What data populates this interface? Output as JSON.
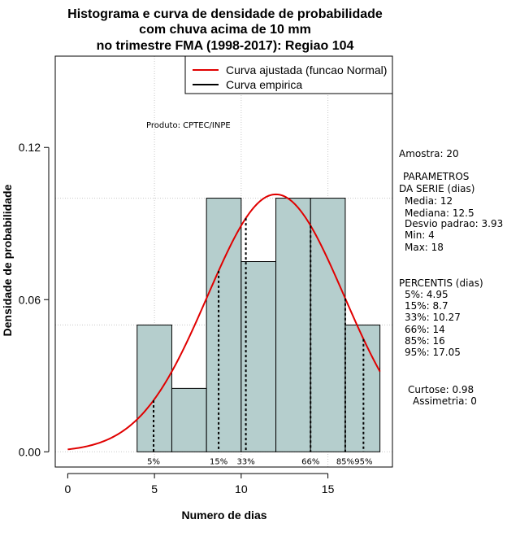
{
  "chart_data": {
    "type": "histogram",
    "title": [
      "Histograma e curva de densidade de probabilidade",
      "com chuva acima de 10 mm",
      "no trimestre FMA (1998-2017): Regiao 104"
    ],
    "xlabel": "Numero de dias",
    "ylabel": "Densidade de probabilidade",
    "xlim": [
      -0.72,
      18.72
    ],
    "ylim": [
      -0.006,
      0.156
    ],
    "x_ticks": [
      0,
      5,
      10,
      15
    ],
    "x_tick_labels": [
      "0",
      "5",
      "10",
      "15"
    ],
    "y_ticks": [
      0.0,
      0.06,
      0.12
    ],
    "y_tick_labels": [
      "0.00",
      "0.06",
      "0.12"
    ],
    "grid": true,
    "grid_y": [
      0.05,
      0.1
    ],
    "grid_x": [
      5,
      10,
      15
    ],
    "bars": [
      {
        "x0": 4,
        "x1": 6,
        "density": 0.05
      },
      {
        "x0": 6,
        "x1": 8,
        "density": 0.025
      },
      {
        "x0": 8,
        "x1": 10,
        "density": 0.1
      },
      {
        "x0": 10,
        "x1": 12,
        "density": 0.075
      },
      {
        "x0": 12,
        "x1": 14,
        "density": 0.1
      },
      {
        "x0": 14,
        "x1": 16,
        "density": 0.1
      },
      {
        "x0": 16,
        "x1": 18,
        "density": 0.05
      }
    ],
    "bar_color": "#b5cecd",
    "normal_curve": {
      "mean": 12,
      "sd": 3.93,
      "color": "#e00000",
      "x_range": [
        0,
        18
      ]
    },
    "percentile_lines": [
      {
        "label": "5%",
        "x": 4.95
      },
      {
        "label": "15%",
        "x": 8.7
      },
      {
        "label": "33%",
        "x": 10.27
      },
      {
        "label": "66%",
        "x": 14
      },
      {
        "label": "85%",
        "x": 16
      },
      {
        "label": "95%",
        "x": 17.05
      }
    ],
    "legend": {
      "position": "top-right",
      "entries": [
        {
          "label": "Curva ajustada (funcao Normal)",
          "color": "#e00000"
        },
        {
          "label": "Curva empirica",
          "color": "#000000"
        }
      ]
    },
    "annotation": "Produto: CPTEC/INPE"
  },
  "stats": {
    "amostra": "Amostra: 20",
    "parametros_title": "PARAMETROS",
    "parametros_subtitle": "DA SERIE (dias)",
    "media": "Media: 12",
    "mediana": "Mediana: 12.5",
    "desvio": "Desvio padrao: 3.93",
    "min": "Min: 4",
    "max": "Max: 18",
    "percentis_title": "PERCENTIS (dias)",
    "p5": "5%: 4.95",
    "p15": "15%: 8.7",
    "p33": "33%: 10.27",
    "p66": "66%: 14",
    "p85": "85%: 16",
    "p95": "95%: 17.05",
    "curtose": "Curtose: 0.98",
    "assimetria": "Assimetria: 0"
  }
}
